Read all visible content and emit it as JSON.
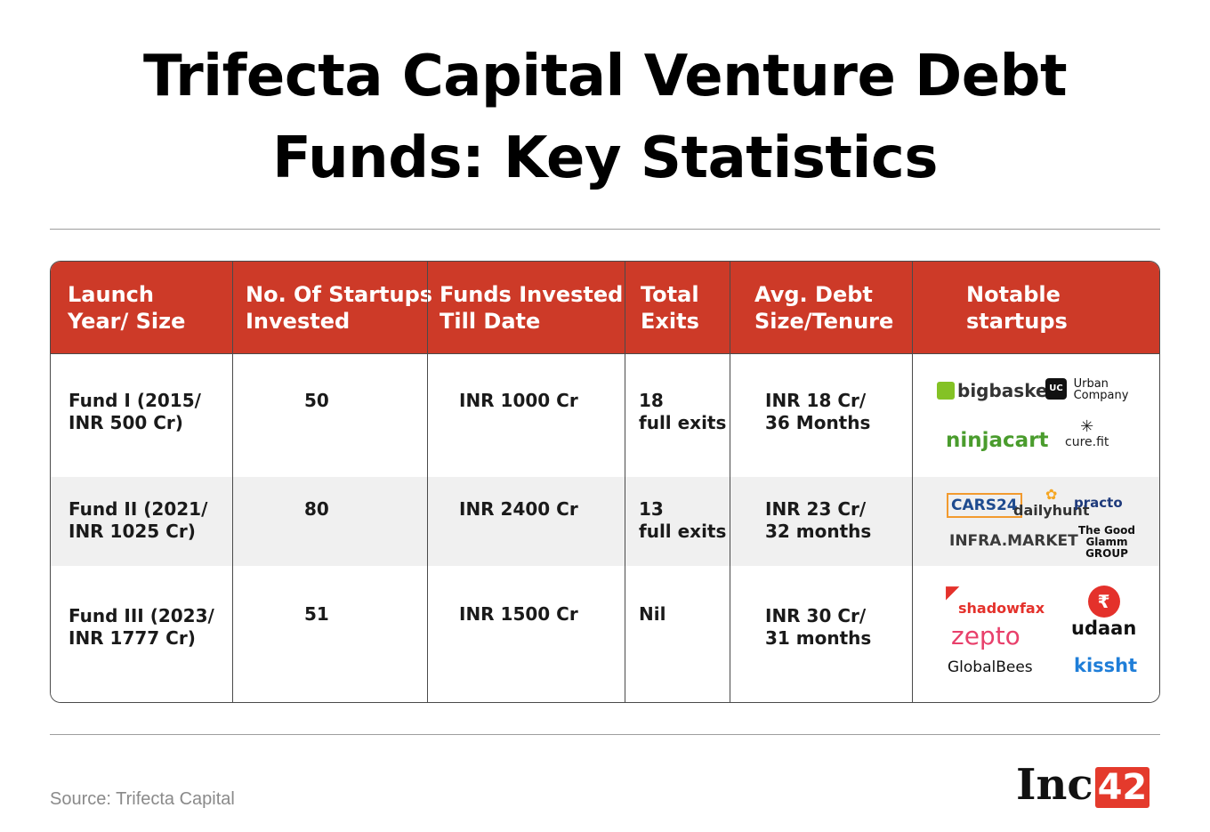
{
  "title": "Trifecta Capital Venture Debt\nFunds: Key Statistics",
  "table": {
    "headers": [
      "Launch\nYear/ Size",
      "No. Of Startups\nInvested",
      "Funds Invested\nTill Date",
      "Total\nExits",
      "Avg. Debt\nSize/Tenure",
      "Notable\nstartups"
    ],
    "rows": [
      {
        "fund": "Fund I (2015/\nINR 500 Cr)",
        "startups": "50",
        "invested": "INR 1000 Cr",
        "exits": "18\nfull exits",
        "avg_debt": "INR 18 Cr/\n36 Months",
        "logos": [
          "bigbasket",
          "Urban\nCompany",
          "ninjacart",
          "cure.fit"
        ]
      },
      {
        "fund": "Fund II (2021/\nINR 1025 Cr)",
        "startups": "80",
        "invested": "INR 2400 Cr",
        "exits": "13\nfull exits",
        "avg_debt": "INR 23 Cr/\n32 months",
        "logos": [
          "CARS24",
          "dailyhunt",
          "practo",
          "INFRA.MARKET",
          "The Good Glamm GROUP"
        ]
      },
      {
        "fund": "Fund III (2023/\nINR 1777 Cr)",
        "startups": "51",
        "invested": "INR 1500 Cr",
        "exits": "Nil",
        "avg_debt": "INR 30 Cr/\n31 months",
        "logos": [
          "shadowfax",
          "zepto",
          "udaan",
          "GlobalBees",
          "kissht"
        ]
      }
    ]
  },
  "footer": {
    "source": "Source: Trifecta Capital",
    "brand_text": "Inc",
    "brand_num": "42"
  },
  "colors": {
    "header_bg": "#cd3a28",
    "stripe_bg": "#f0f0f0",
    "brand_accent": "#e43a2c"
  }
}
